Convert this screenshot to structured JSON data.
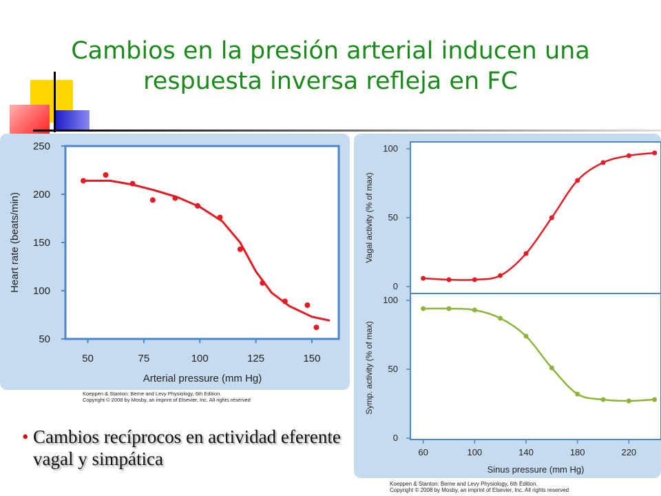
{
  "slide": {
    "title_line1": "Cambios en la presión arterial inducen una",
    "title_line2": "respuesta inversa refleja en FC",
    "bullet_text": "Cambios recíprocos en actividad eferente vagal  y simpática",
    "credit_left_line1": "Koeppen & Stanton: Berne and Levy Physiology, 6th Edition.",
    "credit_left_line2": "Copyright © 2008 by Mosby, an imprint of Elsevier, Inc. All rights reserved",
    "credit_right_line1": "Koeppen & Stanton: Berne and Levy Physiology, 6th Edition.",
    "credit_right_line2": "Copyright © 2008 by Mosby, an imprint of Elsevier, Inc. All rights reserved",
    "colors": {
      "title": "#1a8a1a",
      "red_series": "#e31b23",
      "green_series": "#8cb43a",
      "panel": "#c6daf0",
      "frame": "#4a86c8"
    }
  },
  "chart_data": [
    {
      "type": "scatter",
      "xlabel": "Arterial pressure (mm Hg)",
      "ylabel": "Heart rate (beats/min)",
      "xlim": [
        40,
        162
      ],
      "ylim": [
        50,
        250
      ],
      "xticks": [
        50,
        75,
        100,
        125,
        150
      ],
      "yticks": [
        50,
        100,
        150,
        200,
        250
      ],
      "points": [
        [
          48,
          214
        ],
        [
          58,
          220
        ],
        [
          70,
          211
        ],
        [
          79,
          194
        ],
        [
          89,
          196
        ],
        [
          99,
          188
        ],
        [
          109,
          176
        ],
        [
          118,
          143
        ],
        [
          128,
          108
        ],
        [
          138,
          89
        ],
        [
          148,
          85
        ],
        [
          152,
          62
        ]
      ],
      "curve": [
        [
          48,
          214
        ],
        [
          60,
          214
        ],
        [
          70,
          210
        ],
        [
          80,
          204
        ],
        [
          90,
          197
        ],
        [
          100,
          187
        ],
        [
          110,
          172
        ],
        [
          118,
          150
        ],
        [
          125,
          120
        ],
        [
          132,
          98
        ],
        [
          140,
          84
        ],
        [
          150,
          73
        ],
        [
          158,
          69
        ]
      ],
      "color": "#e31b23",
      "grid": false
    },
    {
      "type": "line",
      "xlabel": "",
      "ylabel": "Vagal activity (% of max)",
      "xlim": [
        50,
        245
      ],
      "ylim": [
        0,
        100
      ],
      "yticks": [
        0,
        50,
        100
      ],
      "x": [
        60,
        80,
        100,
        120,
        140,
        160,
        180,
        200,
        220,
        240
      ],
      "values": [
        6,
        5,
        5,
        8,
        24,
        50,
        77,
        90,
        95,
        97
      ],
      "color": "#e31b23",
      "grid": false
    },
    {
      "type": "line",
      "xlabel": "Sinus pressure (mm Hg)",
      "ylabel": "Symp. activity (% of max)",
      "xlim": [
        50,
        245
      ],
      "ylim": [
        0,
        100
      ],
      "xticks": [
        60,
        100,
        140,
        180,
        220
      ],
      "yticks": [
        0,
        50,
        100
      ],
      "x": [
        60,
        80,
        100,
        120,
        140,
        160,
        180,
        200,
        220,
        240
      ],
      "values": [
        94,
        94,
        93,
        87,
        74,
        51,
        32,
        28,
        27,
        28
      ],
      "color": "#8cb43a",
      "grid": false
    }
  ]
}
